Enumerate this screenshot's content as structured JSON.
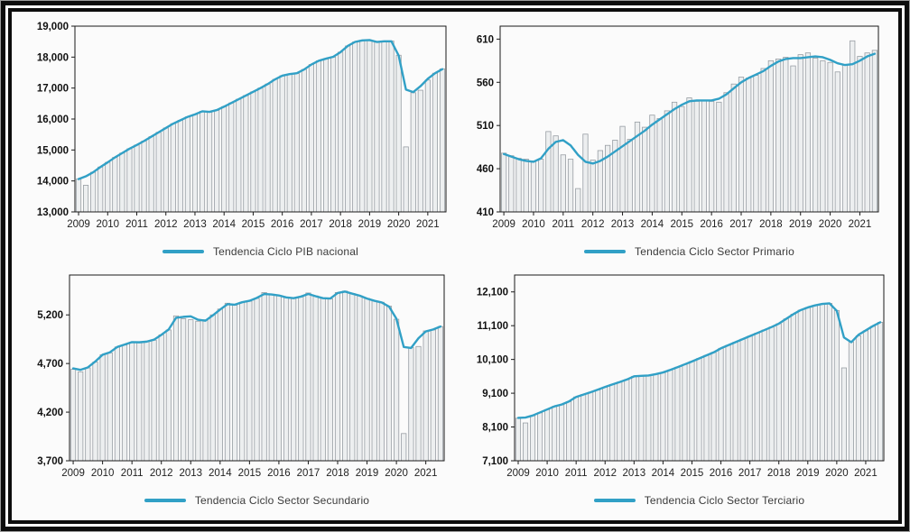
{
  "page": {
    "background": "#fbfbfb",
    "frame_outer_color": "#0d0d0d",
    "frame_gap_color": "#ffffff",
    "outer_edge_color": "#9c9c9c"
  },
  "colors": {
    "trend_line": "#31a0c6",
    "bar_fill": "#edeff0",
    "bar_stroke": "#979da3",
    "axis": "#1a1a1a",
    "y_tick_text": "#111111",
    "x_tick_text": "#222222",
    "legend_text": "#3a3a3a"
  },
  "x_years": [
    "2009",
    "2010",
    "2011",
    "2012",
    "2013",
    "2014",
    "2015",
    "2016",
    "2017",
    "2018",
    "2019",
    "2020",
    "2021"
  ],
  "bars_per_year": 4,
  "x_range": "2009Q1 - 2021Q3",
  "chart_data": [
    {
      "type": "bar",
      "legend_label": "Tendencia Ciclo PIB nacional",
      "ylim": [
        13000,
        19000
      ],
      "yticks": [
        [
          13000,
          "13,000"
        ],
        [
          14000,
          "14,000"
        ],
        [
          15000,
          "15,000"
        ],
        [
          16000,
          "16,000"
        ],
        [
          17000,
          "17,000"
        ],
        [
          18000,
          "18,000"
        ],
        [
          19000,
          "19,000"
        ]
      ],
      "bars": [
        14060,
        13860,
        14280,
        14450,
        14600,
        14760,
        14900,
        15040,
        15160,
        15290,
        15430,
        15570,
        15710,
        15850,
        15960,
        16070,
        16150,
        16250,
        16220,
        16280,
        16400,
        16520,
        16640,
        16760,
        16880,
        17000,
        17130,
        17280,
        17400,
        17440,
        17470,
        17600,
        17760,
        17880,
        17950,
        18000,
        18160,
        18360,
        18490,
        18545,
        18550,
        18480,
        18510,
        18520,
        18060,
        15100,
        16850,
        16930,
        17260,
        17480,
        17620
      ],
      "trend": [
        14060,
        14150,
        14280,
        14450,
        14600,
        14760,
        14900,
        15040,
        15160,
        15290,
        15430,
        15570,
        15710,
        15850,
        15960,
        16070,
        16150,
        16250,
        16230,
        16290,
        16400,
        16520,
        16640,
        16760,
        16880,
        17000,
        17130,
        17280,
        17400,
        17450,
        17480,
        17600,
        17760,
        17880,
        17950,
        18010,
        18160,
        18360,
        18490,
        18540,
        18550,
        18490,
        18510,
        18510,
        18050,
        16950,
        16870,
        17060,
        17300,
        17480,
        17610
      ]
    },
    {
      "type": "bar",
      "legend_label": "Tendencia Ciclo Sector Primario",
      "ylim": [
        410,
        625
      ],
      "yticks": [
        [
          410,
          "410"
        ],
        [
          460,
          "460"
        ],
        [
          510,
          "510"
        ],
        [
          560,
          "560"
        ],
        [
          610,
          "610"
        ]
      ],
      "bars": [
        478,
        475,
        472,
        471,
        469,
        471,
        503,
        498,
        476,
        471,
        437,
        500,
        470,
        481,
        487,
        493,
        509,
        494,
        514,
        508,
        522,
        518,
        527,
        537,
        532,
        542,
        538,
        539,
        538,
        537,
        548,
        558,
        566,
        565,
        568,
        576,
        585,
        587,
        589,
        579,
        592,
        594,
        588,
        585,
        583,
        572,
        580,
        608,
        590,
        594,
        597
      ],
      "trend": [
        477,
        474,
        471,
        469,
        468,
        472,
        483,
        491,
        493,
        487,
        476,
        468,
        466,
        469,
        474,
        480,
        486,
        492,
        498,
        504,
        511,
        517,
        523,
        529,
        534,
        538,
        539,
        539,
        539,
        541,
        546,
        553,
        560,
        565,
        569,
        573,
        579,
        584,
        587,
        588,
        588,
        589,
        590,
        589,
        586,
        582,
        580,
        581,
        585,
        590,
        593
      ]
    },
    {
      "type": "bar",
      "legend_label": "Tendencia Ciclo Sector Secundario",
      "ylim": [
        3700,
        5610
      ],
      "yticks": [
        [
          3700,
          "3,700"
        ],
        [
          4200,
          "4,200"
        ],
        [
          4700,
          "4,700"
        ],
        [
          5200,
          "5,200"
        ]
      ],
      "bars": [
        4640,
        4615,
        4655,
        4715,
        4790,
        4810,
        4870,
        4890,
        4920,
        4915,
        4925,
        4940,
        4995,
        5045,
        5190,
        5160,
        5150,
        5135,
        5150,
        5200,
        5260,
        5320,
        5300,
        5330,
        5340,
        5370,
        5430,
        5410,
        5400,
        5380,
        5370,
        5385,
        5425,
        5395,
        5370,
        5365,
        5430,
        5445,
        5420,
        5395,
        5370,
        5345,
        5330,
        5290,
        5155,
        3980,
        4865,
        4875,
        5035,
        5045,
        5080
      ],
      "trend": [
        4650,
        4635,
        4660,
        4720,
        4790,
        4815,
        4870,
        4895,
        4920,
        4918,
        4925,
        4945,
        4995,
        5050,
        5170,
        5180,
        5185,
        5150,
        5140,
        5195,
        5255,
        5310,
        5305,
        5330,
        5345,
        5375,
        5415,
        5410,
        5400,
        5380,
        5372,
        5388,
        5415,
        5392,
        5372,
        5368,
        5425,
        5440,
        5418,
        5398,
        5368,
        5345,
        5328,
        5285,
        5160,
        4870,
        4860,
        4960,
        5030,
        5050,
        5080
      ]
    },
    {
      "type": "bar",
      "legend_label": "Tendencia Ciclo Sector Terciario",
      "ylim": [
        7100,
        12600
      ],
      "yticks": [
        [
          7100,
          "7,100"
        ],
        [
          8100,
          "8,100"
        ],
        [
          9100,
          "9,100"
        ],
        [
          10100,
          "10,100"
        ],
        [
          11100,
          "11,100"
        ],
        [
          12100,
          "12,100"
        ]
      ],
      "bars": [
        8360,
        8220,
        8430,
        8520,
        8615,
        8710,
        8760,
        8850,
        8990,
        9060,
        9130,
        9200,
        9280,
        9360,
        9430,
        9500,
        9600,
        9610,
        9620,
        9660,
        9710,
        9790,
        9870,
        9950,
        10040,
        10130,
        10220,
        10310,
        10430,
        10520,
        10610,
        10700,
        10790,
        10880,
        10970,
        11060,
        11160,
        11300,
        11440,
        11560,
        11640,
        11700,
        11740,
        11760,
        11550,
        9850,
        10620,
        10800,
        10950,
        11080,
        11200
      ],
      "trend": [
        8370,
        8380,
        8440,
        8530,
        8620,
        8710,
        8765,
        8855,
        8990,
        9060,
        9130,
        9205,
        9285,
        9360,
        9430,
        9505,
        9600,
        9615,
        9625,
        9665,
        9715,
        9790,
        9870,
        9955,
        10040,
        10130,
        10220,
        10310,
        10430,
        10520,
        10610,
        10700,
        10790,
        10880,
        10970,
        11060,
        11160,
        11300,
        11440,
        11560,
        11640,
        11700,
        11745,
        11760,
        11540,
        10750,
        10610,
        10830,
        10960,
        11090,
        11200
      ]
    }
  ]
}
